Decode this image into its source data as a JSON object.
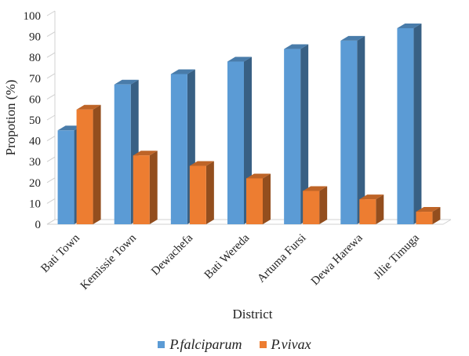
{
  "chart_data": {
    "type": "bar",
    "style": "3d-clustered",
    "title": "",
    "xlabel": "District",
    "ylabel": "Propotion (%)",
    "ylim": [
      0,
      100
    ],
    "yticks": [
      0,
      10,
      20,
      30,
      40,
      50,
      60,
      70,
      80,
      90,
      100
    ],
    "grid": false,
    "legend_position": "bottom",
    "categories": [
      "Bati Town",
      "Kemissie Town",
      "Dewachefa",
      "Bati Wereda",
      "Artuma Fursi",
      "Dewa Harewa",
      "Jilie Timuga"
    ],
    "series": [
      {
        "name": "P.falciparum",
        "color": "#5b9bd5",
        "values": [
          45,
          67,
          72,
          78,
          84,
          88,
          94
        ]
      },
      {
        "name": "P.vivax",
        "color": "#ed7d31",
        "values": [
          55,
          33,
          28,
          22,
          16,
          12,
          6
        ]
      }
    ]
  }
}
